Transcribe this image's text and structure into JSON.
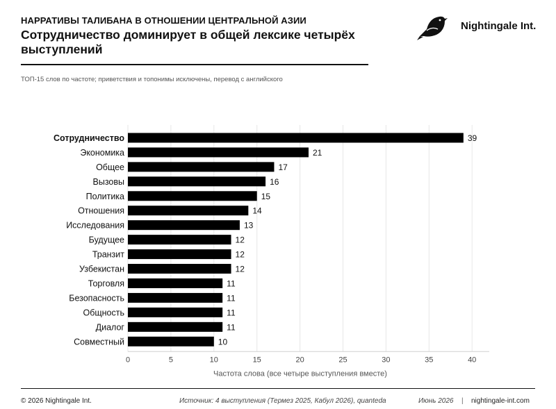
{
  "header": {
    "kicker": "НАРРАТИВЫ ТАЛИБАНА В ОТНОШЕНИИ ЦЕНТРАЛЬНОЙ АЗИИ",
    "title": "Сотрудничество доминирует в общей лексике четырёх выступлений",
    "subtitle": "ТОП-15 слов по частоте; приветствия и топонимы исключены, перевод с английского"
  },
  "brand": {
    "name": "Nightingale Int.",
    "logo_icon": "nightingale-bird-icon"
  },
  "footer": {
    "copyright": "© 2026 Nightingale Int.",
    "source": "Источник: 4 выступления (Термез 2025, Кабул 2026), quanteda",
    "date": "Июнь 2026",
    "separator": "|",
    "site": "nightingale-int.com"
  },
  "chart_data": {
    "type": "bar",
    "orientation": "horizontal",
    "categories": [
      "Сотрудничество",
      "Экономика",
      "Общее",
      "Вызовы",
      "Политика",
      "Отношения",
      "Исследования",
      "Будущее",
      "Транзит",
      "Узбекистан",
      "Торговля",
      "Безопасность",
      "Общность",
      "Диалог",
      "Совместный"
    ],
    "values": [
      39,
      21,
      17,
      16,
      15,
      14,
      13,
      12,
      12,
      12,
      11,
      11,
      11,
      11,
      10
    ],
    "highlight": "Сотрудничество",
    "xlabel": "Частота слова (все четыре выступления вместе)",
    "ylabel": "",
    "xlim": [
      0,
      42
    ],
    "xticks": [
      0,
      5,
      10,
      15,
      20,
      25,
      30,
      35,
      40
    ],
    "grid": "vertical",
    "bar_color": "#000000",
    "grid_color": "#e6e6e6"
  }
}
